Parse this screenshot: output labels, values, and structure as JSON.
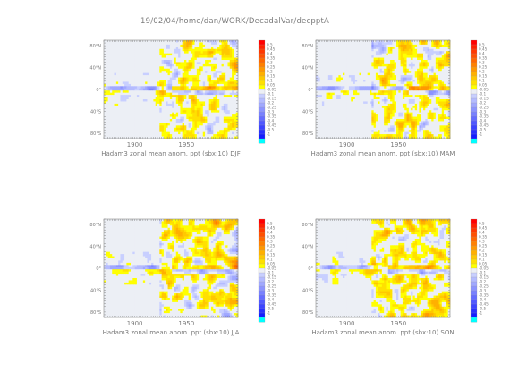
{
  "header": {
    "path": "19/02/04/home/dan/WORK/DecadalVar/decpptA"
  },
  "colors": {
    "background": "#ffffff",
    "positive": [
      "#ffff00",
      "#ffe000",
      "#ffc800",
      "#ffb000",
      "#ff9800",
      "#ff8000",
      "#ff6800",
      "#ff5000",
      "#ff3800",
      "#ff2000",
      "#ff0000"
    ],
    "near_zero": "#eceff5",
    "negative": [
      "#c8cfff",
      "#b4bbff",
      "#a0a8ff",
      "#8c94ff",
      "#7880ff",
      "#646cff",
      "#5058ff",
      "#3c44ff",
      "#2830ff",
      "#141cff",
      "#00ffff"
    ]
  },
  "colorbar": {
    "labels": [
      "0.5",
      "0.45",
      "0.4",
      "0.35",
      "0.3",
      "0.25",
      "0.2",
      "0.15",
      "0.1",
      "0.05",
      "-0.05",
      "-0.1",
      "-0.15",
      "-0.2",
      "-0.25",
      "-0.3",
      "-0.35",
      "-0.4",
      "-0.45",
      "-0.5",
      "-1"
    ]
  },
  "chart_data": [
    {
      "type": "heatmap",
      "title": "Hadam3 zonal mean anom. ppt (sbx:10) DJF",
      "x_range": [
        1870,
        2000
      ],
      "y_range": [
        -90,
        90
      ],
      "x_ticks": [
        "1900",
        "1950"
      ],
      "y_ticks": [
        "80°N",
        "40°N",
        "0°",
        "40°S",
        "80°S"
      ],
      "z_range": [
        -1,
        0.5
      ],
      "equatorial_band": {
        "positive_start_year": 1935,
        "negative_until_year": 1930
      }
    },
    {
      "type": "heatmap",
      "title": "Hadam3 zonal mean anom. ppt (sbx:10) MAM",
      "x_range": [
        1870,
        2000
      ],
      "y_range": [
        -90,
        90
      ],
      "x_ticks": [
        "1900",
        "1950"
      ],
      "y_ticks": [
        "80°N",
        "40°N",
        "0°",
        "40°S",
        "80°S"
      ],
      "z_range": [
        -1,
        0.5
      ],
      "equatorial_band": {
        "positive_start_year": 1960,
        "negative_until_year": 1960
      }
    },
    {
      "type": "heatmap",
      "title": "Hadam3 zonal mean anom. ppt (sbx:10) JJA",
      "x_range": [
        1870,
        2000
      ],
      "y_range": [
        -90,
        90
      ],
      "x_ticks": [
        "1900",
        "1950"
      ],
      "y_ticks": [
        "80°N",
        "40°N",
        "0°",
        "40°S",
        "80°S"
      ],
      "z_range": [
        -1,
        0.5
      ],
      "equatorial_band": {
        "positive_start_year": 1935,
        "negative_until_year": 1930
      }
    },
    {
      "type": "heatmap",
      "title": "Hadam3 zonal mean anom. ppt (sbx:10) SON",
      "x_range": [
        1870,
        2000
      ],
      "y_range": [
        -90,
        90
      ],
      "x_ticks": [
        "1900",
        "1950"
      ],
      "y_ticks": [
        "80°N",
        "40°N",
        "0°",
        "40°S",
        "80°S"
      ],
      "z_range": [
        -1,
        0.5
      ],
      "equatorial_band": {
        "positive_start_year": 1940,
        "negative_until_year": 1935
      }
    }
  ]
}
